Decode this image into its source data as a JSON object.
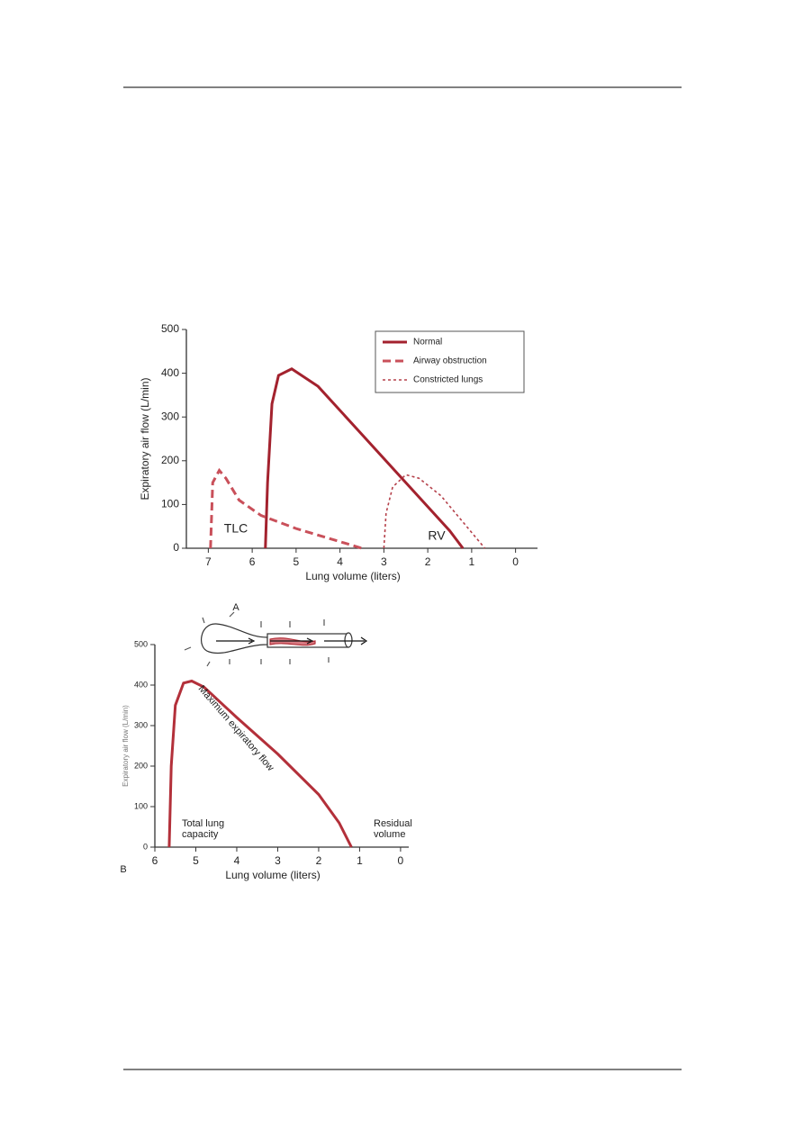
{
  "chart_data": [
    {
      "type": "line",
      "x_label": "Lung volume (liters)",
      "y_label": "Expiratory air flow (L/min)",
      "xlim": [
        7.5,
        -0.5
      ],
      "xticks": [
        7,
        6,
        5,
        4,
        3,
        2,
        1,
        0
      ],
      "ylim": [
        0,
        500
      ],
      "yticks": [
        0,
        100,
        200,
        300,
        400,
        500
      ],
      "legend": "upper right",
      "series": [
        {
          "name": "Normal",
          "color": "#a3222e",
          "style": "solid",
          "x": [
            5.7,
            5.65,
            5.55,
            5.4,
            5.1,
            4.5,
            3.5,
            2.5,
            1.5,
            1.2
          ],
          "values": [
            0,
            150,
            330,
            395,
            410,
            370,
            260,
            150,
            40,
            0
          ]
        },
        {
          "name": "Airway obstruction",
          "color": "#c9505a",
          "style": "dashed",
          "x": [
            6.95,
            6.9,
            6.75,
            6.6,
            6.3,
            5.8,
            5,
            4,
            3.5
          ],
          "values": [
            0,
            150,
            178,
            160,
            110,
            75,
            45,
            15,
            0
          ]
        },
        {
          "name": "Constricted lungs",
          "color": "#b5404a",
          "style": "dotted",
          "x": [
            3,
            2.95,
            2.8,
            2.5,
            2.2,
            1.7,
            1.2,
            0.7
          ],
          "values": [
            0,
            80,
            140,
            168,
            160,
            120,
            60,
            0
          ]
        }
      ],
      "annotations": [
        "TLC",
        "RV"
      ]
    },
    {
      "type": "line",
      "x_label": "Lung volume (liters)",
      "y_label": "Expiratory air flow (L/min)",
      "xlim": [
        6,
        -0.2
      ],
      "xticks": [
        6,
        5,
        4,
        3,
        2,
        1,
        0
      ],
      "ylim": [
        0,
        500
      ],
      "yticks": [
        0,
        100,
        200,
        300,
        400,
        500
      ],
      "series": [
        {
          "name": "Maximum expiratory flow",
          "color": "#b3303a",
          "style": "solid",
          "x": [
            5.65,
            5.6,
            5.5,
            5.3,
            5.1,
            4.8,
            4,
            3,
            2,
            1.5,
            1.2
          ],
          "values": [
            0,
            200,
            350,
            405,
            410,
            395,
            320,
            230,
            130,
            60,
            0
          ]
        }
      ],
      "annotations": [
        "Total lung capacity",
        "Residual volume",
        "A",
        "B"
      ]
    }
  ]
}
